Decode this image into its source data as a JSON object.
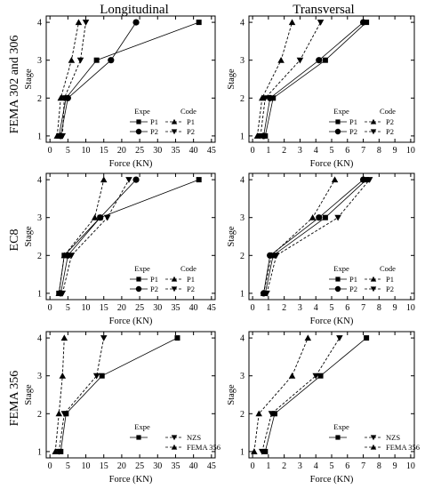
{
  "figure": {
    "column_titles": [
      "Longitudinal",
      "Transversal"
    ],
    "row_labels": [
      "FEMA 302 and 306",
      "EC8",
      "FEMA 356"
    ]
  },
  "chart_data": [
    {
      "type": "line",
      "row": 0,
      "col": 0,
      "xlabel": "Force (KN)",
      "ylabel": "Stage",
      "xlim": [
        0,
        45
      ],
      "ylim": [
        1,
        4
      ],
      "xticks": [
        0,
        5,
        10,
        15,
        20,
        25,
        30,
        35,
        40,
        45
      ],
      "yticks": [
        1,
        2,
        3,
        4
      ],
      "legend": {
        "position": "bottom-right",
        "headers": [
          "Expe",
          "Code"
        ],
        "rows": [
          [
            "P1",
            "P1"
          ],
          [
            "P2",
            "P2"
          ]
        ]
      },
      "series": [
        {
          "group": "Expe",
          "name": "P1",
          "marker": "square",
          "dash": false,
          "x": [
            2.5,
            4.5,
            13,
            41.5
          ],
          "y": [
            1,
            2,
            3,
            4
          ]
        },
        {
          "group": "Expe",
          "name": "P2",
          "marker": "circle",
          "dash": false,
          "x": [
            3,
            5,
            17,
            24
          ],
          "y": [
            1,
            2,
            3,
            4
          ]
        },
        {
          "group": "Code",
          "name": "P1",
          "marker": "tri-up",
          "dash": true,
          "x": [
            2,
            3,
            6,
            8
          ],
          "y": [
            1,
            2,
            3,
            4
          ]
        },
        {
          "group": "Code",
          "name": "P2",
          "marker": "tri-down",
          "dash": true,
          "x": [
            3.5,
            4,
            8.5,
            10
          ],
          "y": [
            1,
            2,
            3,
            4
          ]
        }
      ]
    },
    {
      "type": "line",
      "row": 0,
      "col": 1,
      "xlabel": "Force (KN)",
      "ylabel": "Stage",
      "xlim": [
        0,
        10
      ],
      "ylim": [
        1,
        4
      ],
      "xticks": [
        0,
        1,
        2,
        3,
        4,
        5,
        6,
        7,
        8,
        9,
        10
      ],
      "yticks": [
        1,
        2,
        3,
        4
      ],
      "legend": {
        "position": "bottom-right",
        "headers": [
          "Expe",
          "Code"
        ],
        "rows": [
          [
            "P1",
            "P2"
          ],
          [
            "P2",
            "P2"
          ]
        ]
      },
      "series": [
        {
          "group": "Expe",
          "name": "P1",
          "marker": "square",
          "dash": false,
          "x": [
            0.8,
            1.3,
            4.6,
            7.2
          ],
          "y": [
            1,
            2,
            3,
            4
          ]
        },
        {
          "group": "Expe",
          "name": "P2",
          "marker": "circle",
          "dash": false,
          "x": [
            0.7,
            1.1,
            4.2,
            7.0
          ],
          "y": [
            1,
            2,
            3,
            4
          ]
        },
        {
          "group": "Code",
          "name": "P2",
          "marker": "tri-up",
          "dash": true,
          "x": [
            0.3,
            0.6,
            1.8,
            2.5
          ],
          "y": [
            1,
            2,
            3,
            4
          ]
        },
        {
          "group": "Code",
          "name": "P2",
          "marker": "tri-down",
          "dash": true,
          "x": [
            0.5,
            0.8,
            3.0,
            4.3
          ],
          "y": [
            1,
            2,
            3,
            4
          ]
        }
      ]
    },
    {
      "type": "line",
      "row": 1,
      "col": 0,
      "xlabel": "Force (KN)",
      "ylabel": "Stage",
      "xlim": [
        0,
        45
      ],
      "ylim": [
        1,
        4
      ],
      "xticks": [
        0,
        5,
        10,
        15,
        20,
        25,
        30,
        35,
        40,
        45
      ],
      "yticks": [
        1,
        2,
        3,
        4
      ],
      "legend": {
        "position": "bottom-right",
        "headers": [
          "Expe",
          "Code"
        ],
        "rows": [
          [
            "P1",
            "P1"
          ],
          [
            "P2",
            "P2"
          ]
        ]
      },
      "series": [
        {
          "group": "Expe",
          "name": "P1",
          "marker": "square",
          "dash": false,
          "x": [
            2.5,
            4,
            14,
            41.5
          ],
          "y": [
            1,
            2,
            3,
            4
          ]
        },
        {
          "group": "Expe",
          "name": "P2",
          "marker": "circle",
          "dash": false,
          "x": [
            3,
            5,
            14,
            24
          ],
          "y": [
            1,
            2,
            3,
            4
          ]
        },
        {
          "group": "Code",
          "name": "P1",
          "marker": "tri-up",
          "dash": true,
          "x": [
            2.5,
            4,
            12.5,
            15
          ],
          "y": [
            1,
            2,
            3,
            4
          ]
        },
        {
          "group": "Code",
          "name": "P2",
          "marker": "tri-down",
          "dash": true,
          "x": [
            3.5,
            6,
            16,
            22
          ],
          "y": [
            1,
            2,
            3,
            4
          ]
        }
      ]
    },
    {
      "type": "line",
      "row": 1,
      "col": 1,
      "xlabel": "Force (KN)",
      "ylabel": "Stage",
      "xlim": [
        0,
        10
      ],
      "ylim": [
        1,
        4
      ],
      "xticks": [
        0,
        1,
        2,
        3,
        4,
        5,
        6,
        7,
        8,
        9,
        10
      ],
      "yticks": [
        1,
        2,
        3,
        4
      ],
      "legend": {
        "position": "bottom-right",
        "headers": [
          "Expe",
          "Code"
        ],
        "rows": [
          [
            "P1",
            "P1"
          ],
          [
            "P2",
            "P2"
          ]
        ]
      },
      "series": [
        {
          "group": "Expe",
          "name": "P1",
          "marker": "square",
          "dash": false,
          "x": [
            0.8,
            1.3,
            4.6,
            7.2
          ],
          "y": [
            1,
            2,
            3,
            4
          ]
        },
        {
          "group": "Expe",
          "name": "P2",
          "marker": "circle",
          "dash": false,
          "x": [
            0.7,
            1.1,
            4.2,
            7.0
          ],
          "y": [
            1,
            2,
            3,
            4
          ]
        },
        {
          "group": "Code",
          "name": "P1",
          "marker": "tri-up",
          "dash": true,
          "x": [
            0.7,
            1.2,
            3.8,
            5.2
          ],
          "y": [
            1,
            2,
            3,
            4
          ]
        },
        {
          "group": "Code",
          "name": "P2",
          "marker": "tri-down",
          "dash": true,
          "x": [
            0.9,
            1.5,
            5.4,
            7.4
          ],
          "y": [
            1,
            2,
            3,
            4
          ]
        }
      ]
    },
    {
      "type": "line",
      "row": 2,
      "col": 0,
      "xlabel": "Force (KN)",
      "ylabel": "Stage",
      "xlim": [
        0,
        45
      ],
      "ylim": [
        1,
        4
      ],
      "xticks": [
        0,
        5,
        10,
        15,
        20,
        25,
        30,
        35,
        40,
        45
      ],
      "yticks": [
        1,
        2,
        3,
        4
      ],
      "legend": {
        "position": "bottom-right",
        "headers": [
          "Expe",
          "",
          ""
        ],
        "rows": [
          [
            "",
            "NZS"
          ],
          [
            "",
            "FEMA 356"
          ]
        ]
      },
      "series": [
        {
          "group": "Expe",
          "name": "",
          "marker": "square",
          "dash": false,
          "x": [
            3,
            4.5,
            14.5,
            35.5
          ],
          "y": [
            1,
            2,
            3,
            4
          ]
        },
        {
          "group": "Code",
          "name": "NZS",
          "marker": "tri-down",
          "dash": true,
          "x": [
            2.5,
            4,
            13,
            15
          ],
          "y": [
            1,
            2,
            3,
            4
          ]
        },
        {
          "group": "Code",
          "name": "FEMA 356",
          "marker": "tri-up",
          "dash": true,
          "x": [
            1.5,
            2.5,
            3.5,
            4
          ],
          "y": [
            1,
            2,
            3,
            4
          ]
        }
      ]
    },
    {
      "type": "line",
      "row": 2,
      "col": 1,
      "xlabel": "Force (KN)",
      "ylabel": "Stage",
      "xlim": [
        0,
        10
      ],
      "ylim": [
        1,
        4
      ],
      "xticks": [
        0,
        1,
        2,
        3,
        4,
        5,
        6,
        7,
        8,
        9,
        10
      ],
      "yticks": [
        1,
        2,
        3,
        4
      ],
      "legend": {
        "position": "bottom-right",
        "headers": [
          "Expe",
          "",
          ""
        ],
        "rows": [
          [
            "",
            "NZS"
          ],
          [
            "",
            "FEMA 356"
          ]
        ]
      },
      "series": [
        {
          "group": "Expe",
          "name": "",
          "marker": "square",
          "dash": false,
          "x": [
            0.8,
            1.4,
            4.3,
            7.2
          ],
          "y": [
            1,
            2,
            3,
            4
          ]
        },
        {
          "group": "Code",
          "name": "NZS",
          "marker": "tri-down",
          "dash": true,
          "x": [
            0.6,
            1.2,
            4.0,
            5.5
          ],
          "y": [
            1,
            2,
            3,
            4
          ]
        },
        {
          "group": "Code",
          "name": "FEMA 356",
          "marker": "tri-up",
          "dash": true,
          "x": [
            0.1,
            0.4,
            2.5,
            3.5
          ],
          "y": [
            1,
            2,
            3,
            4
          ]
        }
      ]
    }
  ]
}
